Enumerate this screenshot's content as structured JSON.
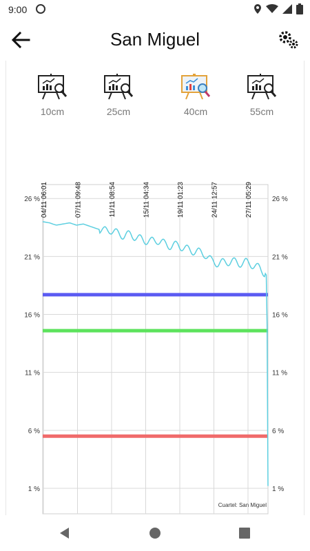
{
  "status_bar": {
    "time": "9:00",
    "icons": [
      "app-notification-icon",
      "location-icon",
      "wifi-icon",
      "signal-icon",
      "battery-icon"
    ]
  },
  "app_bar": {
    "title": "San Miguel",
    "back_icon": "arrow-left-icon",
    "settings_icon": "gears-icon"
  },
  "depth_tabs": [
    {
      "label": "10cm",
      "icon": "chart-presentation-icon",
      "selected": false
    },
    {
      "label": "25cm",
      "icon": "chart-presentation-icon",
      "selected": false
    },
    {
      "label": "40cm",
      "icon": "chart-presentation-color-icon",
      "selected": true
    },
    {
      "label": "55cm",
      "icon": "chart-presentation-icon",
      "selected": false
    }
  ],
  "chart_data": {
    "type": "line",
    "x_tick_labels": [
      "04/11 06:01",
      "07/11 09:48",
      "11/11 08:54",
      "15/11 04:34",
      "19/11 01:23",
      "24/11 12:57",
      "27/11 05:29"
    ],
    "y_tick_labels": [
      "26 %",
      "21 %",
      "16 %",
      "11 %",
      "6 %",
      "1 %"
    ],
    "y_ticks": [
      26,
      21,
      16,
      11,
      6,
      1
    ],
    "ylim": [
      -1.2,
      27.2
    ],
    "annotation": "Cuartel: San Miguel",
    "thresholds": [
      {
        "value": 17.7,
        "color": "#5b5bf2"
      },
      {
        "value": 14.6,
        "color": "#5de35d"
      },
      {
        "value": 5.5,
        "color": "#f06a6a"
      }
    ],
    "series": [
      {
        "color": "#5ccfe0",
        "x": [
          0.0,
          0.03,
          0.06,
          0.09,
          0.12,
          0.15,
          0.18,
          0.21,
          0.24,
          0.27,
          0.3,
          0.33,
          0.36,
          0.39,
          0.42,
          0.45,
          0.48,
          0.51,
          0.54,
          0.57,
          0.6,
          0.63,
          0.66,
          0.69,
          0.72,
          0.75,
          0.78,
          0.81,
          0.84,
          0.87,
          0.9,
          0.93,
          0.96,
          0.99,
          0.995,
          1.0
        ],
        "y": [
          24.0,
          23.9,
          23.7,
          23.8,
          23.9,
          23.7,
          23.8,
          23.6,
          23.4,
          23.2,
          23.3,
          23.0,
          22.8,
          22.9,
          22.6,
          22.4,
          22.3,
          22.4,
          22.1,
          21.9,
          22.0,
          21.7,
          21.5,
          21.4,
          21.2,
          20.6,
          20.4,
          20.5,
          20.6,
          20.4,
          20.5,
          20.3,
          20.0,
          19.5,
          19.3,
          1.2
        ]
      }
    ]
  },
  "nav_bar": {
    "back_icon": "nav-back-icon",
    "home_icon": "nav-home-icon",
    "recents_icon": "nav-recents-icon"
  }
}
